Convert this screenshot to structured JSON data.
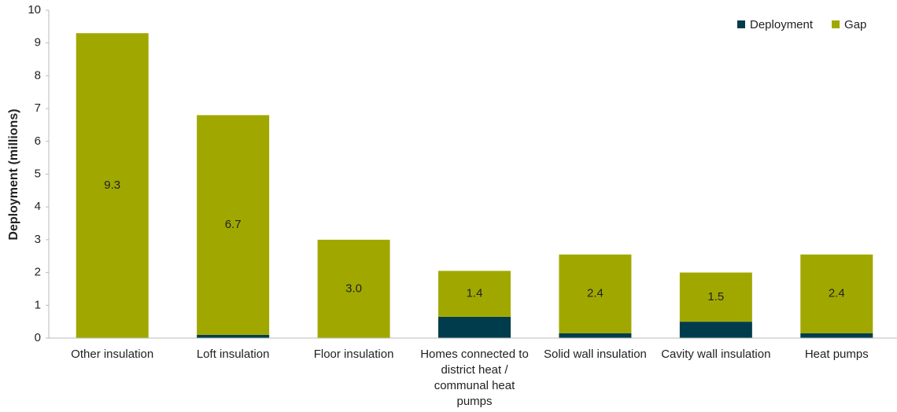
{
  "chart_data": {
    "type": "stacked_bar",
    "y_label": "Deployment (millions)",
    "categories": [
      "Other insulation",
      "Loft insulation",
      "Floor insulation",
      "Homes connected to district heat / communal heat pumps",
      "Solid wall insulation",
      "Cavity wall insulation",
      "Heat pumps"
    ],
    "series": [
      {
        "name": "Deployment",
        "color": "#003c4b",
        "values": [
          0,
          0.1,
          0,
          0.65,
          0.15,
          0.5,
          0.15
        ]
      },
      {
        "name": "Gap",
        "color": "#a0a800",
        "values": [
          9.3,
          6.7,
          3.0,
          1.4,
          2.4,
          1.5,
          2.4
        ],
        "value_labels": [
          "9.3",
          "6.7",
          "3.0",
          "1.4",
          "2.4",
          "1.5",
          "2.4"
        ]
      }
    ],
    "ylim": [
      0,
      10
    ],
    "yticks": [
      0,
      1,
      2,
      3,
      4,
      5,
      6,
      7,
      8,
      9,
      10
    ],
    "grid": false,
    "legend": "top-right"
  }
}
